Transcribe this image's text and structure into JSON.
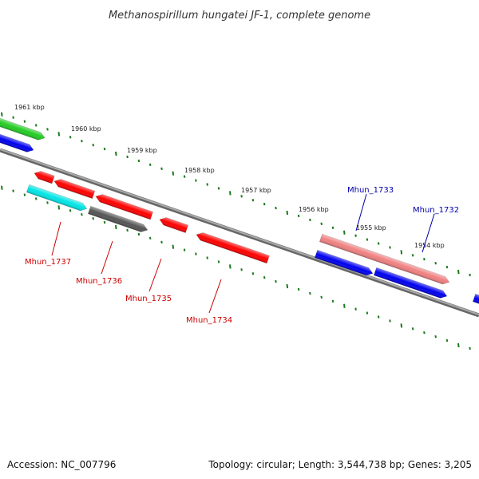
{
  "title": "Methanospirillum hungatei JF-1, complete genome",
  "footer": {
    "accession": "Accession: NC_007796",
    "summary": "Topology: circular; Length: 3,544,738 bp; Genes: 3,205"
  },
  "ticks": [
    {
      "label": "1961 kbp"
    },
    {
      "label": "1960 kbp"
    },
    {
      "label": "1959 kbp"
    },
    {
      "label": "1958 kbp"
    },
    {
      "label": "1957 kbp"
    },
    {
      "label": "1956 kbp"
    },
    {
      "label": "1955 kbp"
    },
    {
      "label": "1954 kbp"
    }
  ],
  "genes": [
    {
      "label": "Mhun_1737",
      "color": "#cc0000"
    },
    {
      "label": "Mhun_1736",
      "color": "#cc0000"
    },
    {
      "label": "Mhun_1735",
      "color": "#cc0000"
    },
    {
      "label": "Mhun_1734",
      "color": "#cc0000"
    },
    {
      "label": "Mhun_1733",
      "color": "#0000aa"
    },
    {
      "label": "Mhun_1732",
      "color": "#0000aa"
    }
  ],
  "colors": {
    "red": "#ff0000",
    "pink": "#f08080",
    "blue": "#0000ee",
    "green": "#22cc22",
    "cyan": "#00e5e5",
    "gray": "#555555",
    "backbone": "#888888",
    "tick": "#1a7a1a"
  }
}
